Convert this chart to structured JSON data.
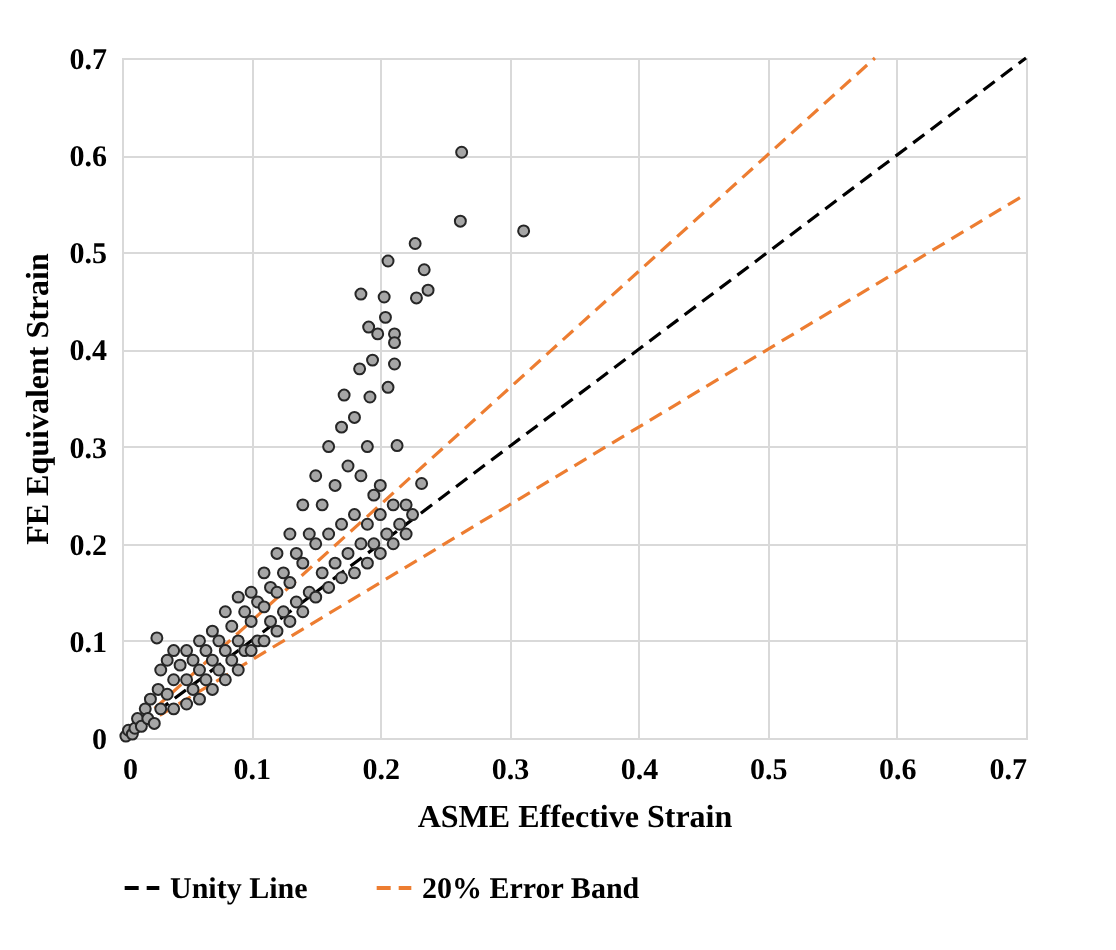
{
  "chart_data": {
    "type": "scatter",
    "xlabel": "ASME Effective Strain",
    "ylabel": "FE Equivalent Strain",
    "xlim": [
      0,
      0.7
    ],
    "ylim": [
      0,
      0.7
    ],
    "xticks": [
      0,
      0.1,
      0.2,
      0.3,
      0.4,
      0.5,
      0.6,
      0.7
    ],
    "yticks": [
      0,
      0.1,
      0.2,
      0.3,
      0.4,
      0.5,
      0.6,
      0.7
    ],
    "grid": true,
    "legend": "bottom",
    "marker": "circle",
    "series": [
      {
        "type": "line",
        "name": "Unity Line",
        "color": "#000000",
        "line_style": "dashed",
        "marker": "none",
        "x": [
          0,
          0.7
        ],
        "values": [
          0,
          0.7
        ]
      },
      {
        "type": "line",
        "name": "20% Error Band",
        "color": "#ed7d31",
        "line_style": "dashed",
        "marker": "none",
        "x": [
          0,
          0.583
        ],
        "values": [
          0,
          0.7
        ]
      },
      {
        "type": "line",
        "color": "#ed7d31",
        "line_style": "dashed",
        "marker": "none",
        "x": [
          0,
          0.7
        ],
        "values": [
          0,
          0.56
        ]
      },
      {
        "color": "#a6a6a6",
        "x": [
          0.003,
          0.005,
          0.008,
          0.01,
          0.012,
          0.015,
          0.018,
          0.02,
          0.022,
          0.025,
          0.028,
          0.03,
          0.03,
          0.035,
          0.035,
          0.04,
          0.04,
          0.04,
          0.045,
          0.05,
          0.05,
          0.05,
          0.055,
          0.055,
          0.06,
          0.06,
          0.06,
          0.065,
          0.065,
          0.07,
          0.07,
          0.07,
          0.075,
          0.075,
          0.08,
          0.08,
          0.08,
          0.085,
          0.085,
          0.09,
          0.09,
          0.09,
          0.095,
          0.095,
          0.1,
          0.1,
          0.1,
          0.105,
          0.105,
          0.11,
          0.11,
          0.11,
          0.115,
          0.115,
          0.12,
          0.12,
          0.12,
          0.125,
          0.125,
          0.13,
          0.13,
          0.13,
          0.135,
          0.135,
          0.14,
          0.14,
          0.14,
          0.145,
          0.145,
          0.15,
          0.15,
          0.15,
          0.155,
          0.155,
          0.16,
          0.16,
          0.16,
          0.165,
          0.165,
          0.17,
          0.17,
          0.17,
          0.175,
          0.175,
          0.18,
          0.18,
          0.18,
          0.185,
          0.185,
          0.19,
          0.19,
          0.19,
          0.195,
          0.195,
          0.2,
          0.2,
          0.2,
          0.205,
          0.21,
          0.21,
          0.215,
          0.22,
          0.22,
          0.225,
          0.263,
          0.262,
          0.311,
          0.227,
          0.206,
          0.234,
          0.185,
          0.203,
          0.228,
          0.237,
          0.204,
          0.191,
          0.198,
          0.211,
          0.211,
          0.194,
          0.211,
          0.184,
          0.206,
          0.172,
          0.192,
          0.027,
          0.213,
          0.232
        ],
        "values": [
          0.002,
          0.008,
          0.004,
          0.01,
          0.02,
          0.012,
          0.03,
          0.02,
          0.04,
          0.015,
          0.05,
          0.03,
          0.07,
          0.045,
          0.08,
          0.03,
          0.06,
          0.09,
          0.075,
          0.035,
          0.06,
          0.09,
          0.05,
          0.08,
          0.04,
          0.07,
          0.1,
          0.06,
          0.09,
          0.05,
          0.08,
          0.11,
          0.07,
          0.1,
          0.06,
          0.09,
          0.13,
          0.08,
          0.115,
          0.07,
          0.1,
          0.145,
          0.09,
          0.13,
          0.09,
          0.12,
          0.15,
          0.1,
          0.14,
          0.1,
          0.135,
          0.17,
          0.12,
          0.155,
          0.11,
          0.15,
          0.19,
          0.13,
          0.17,
          0.12,
          0.16,
          0.21,
          0.14,
          0.19,
          0.13,
          0.18,
          0.24,
          0.15,
          0.21,
          0.145,
          0.2,
          0.27,
          0.17,
          0.24,
          0.155,
          0.21,
          0.3,
          0.18,
          0.26,
          0.165,
          0.22,
          0.32,
          0.19,
          0.28,
          0.17,
          0.23,
          0.33,
          0.2,
          0.27,
          0.18,
          0.22,
          0.3,
          0.2,
          0.25,
          0.19,
          0.23,
          0.26,
          0.21,
          0.2,
          0.24,
          0.22,
          0.21,
          0.24,
          0.23,
          0.603,
          0.532,
          0.522,
          0.509,
          0.491,
          0.482,
          0.457,
          0.454,
          0.453,
          0.461,
          0.433,
          0.423,
          0.416,
          0.416,
          0.407,
          0.389,
          0.385,
          0.38,
          0.361,
          0.353,
          0.351,
          0.103,
          0.301,
          0.262
        ]
      }
    ]
  }
}
